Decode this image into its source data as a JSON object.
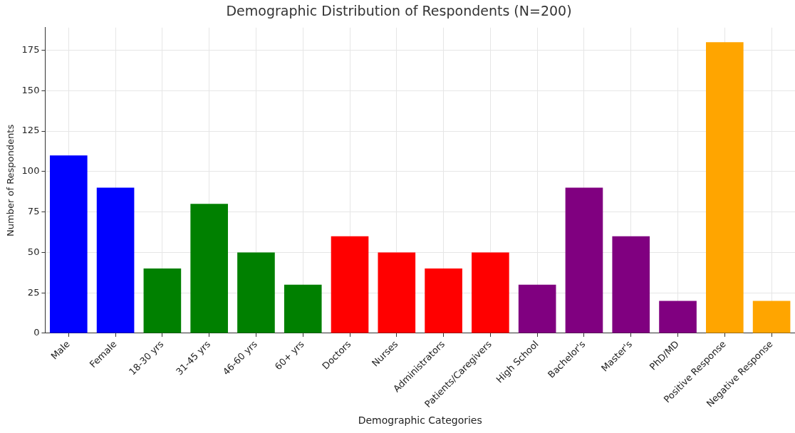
{
  "chart_data": {
    "type": "bar",
    "title": "Demographic Distribution of Respondents (N=200)",
    "xlabel": "Demographic Categories",
    "ylabel": "Number of Respondents",
    "categories": [
      "Male",
      "Female",
      "18-30 yrs",
      "31-45 yrs",
      "46-60 yrs",
      "60+ yrs",
      "Doctors",
      "Nurses",
      "Administrators",
      "Patients/Caregivers",
      "High School",
      "Bachelor's",
      "Master's",
      "PhD/MD",
      "Positive Response",
      "Negative Response"
    ],
    "values": [
      110,
      90,
      40,
      80,
      50,
      30,
      60,
      50,
      40,
      50,
      30,
      90,
      60,
      20,
      180,
      20
    ],
    "colors": [
      "#0000ff",
      "#0000ff",
      "#008000",
      "#008000",
      "#008000",
      "#008000",
      "#ff0000",
      "#ff0000",
      "#ff0000",
      "#ff0000",
      "#800080",
      "#800080",
      "#800080",
      "#800080",
      "#ffa500",
      "#ffa500"
    ],
    "ylim": [
      0,
      189
    ],
    "yticks": [
      0,
      25,
      50,
      75,
      100,
      125,
      150,
      175
    ],
    "grid": true
  }
}
